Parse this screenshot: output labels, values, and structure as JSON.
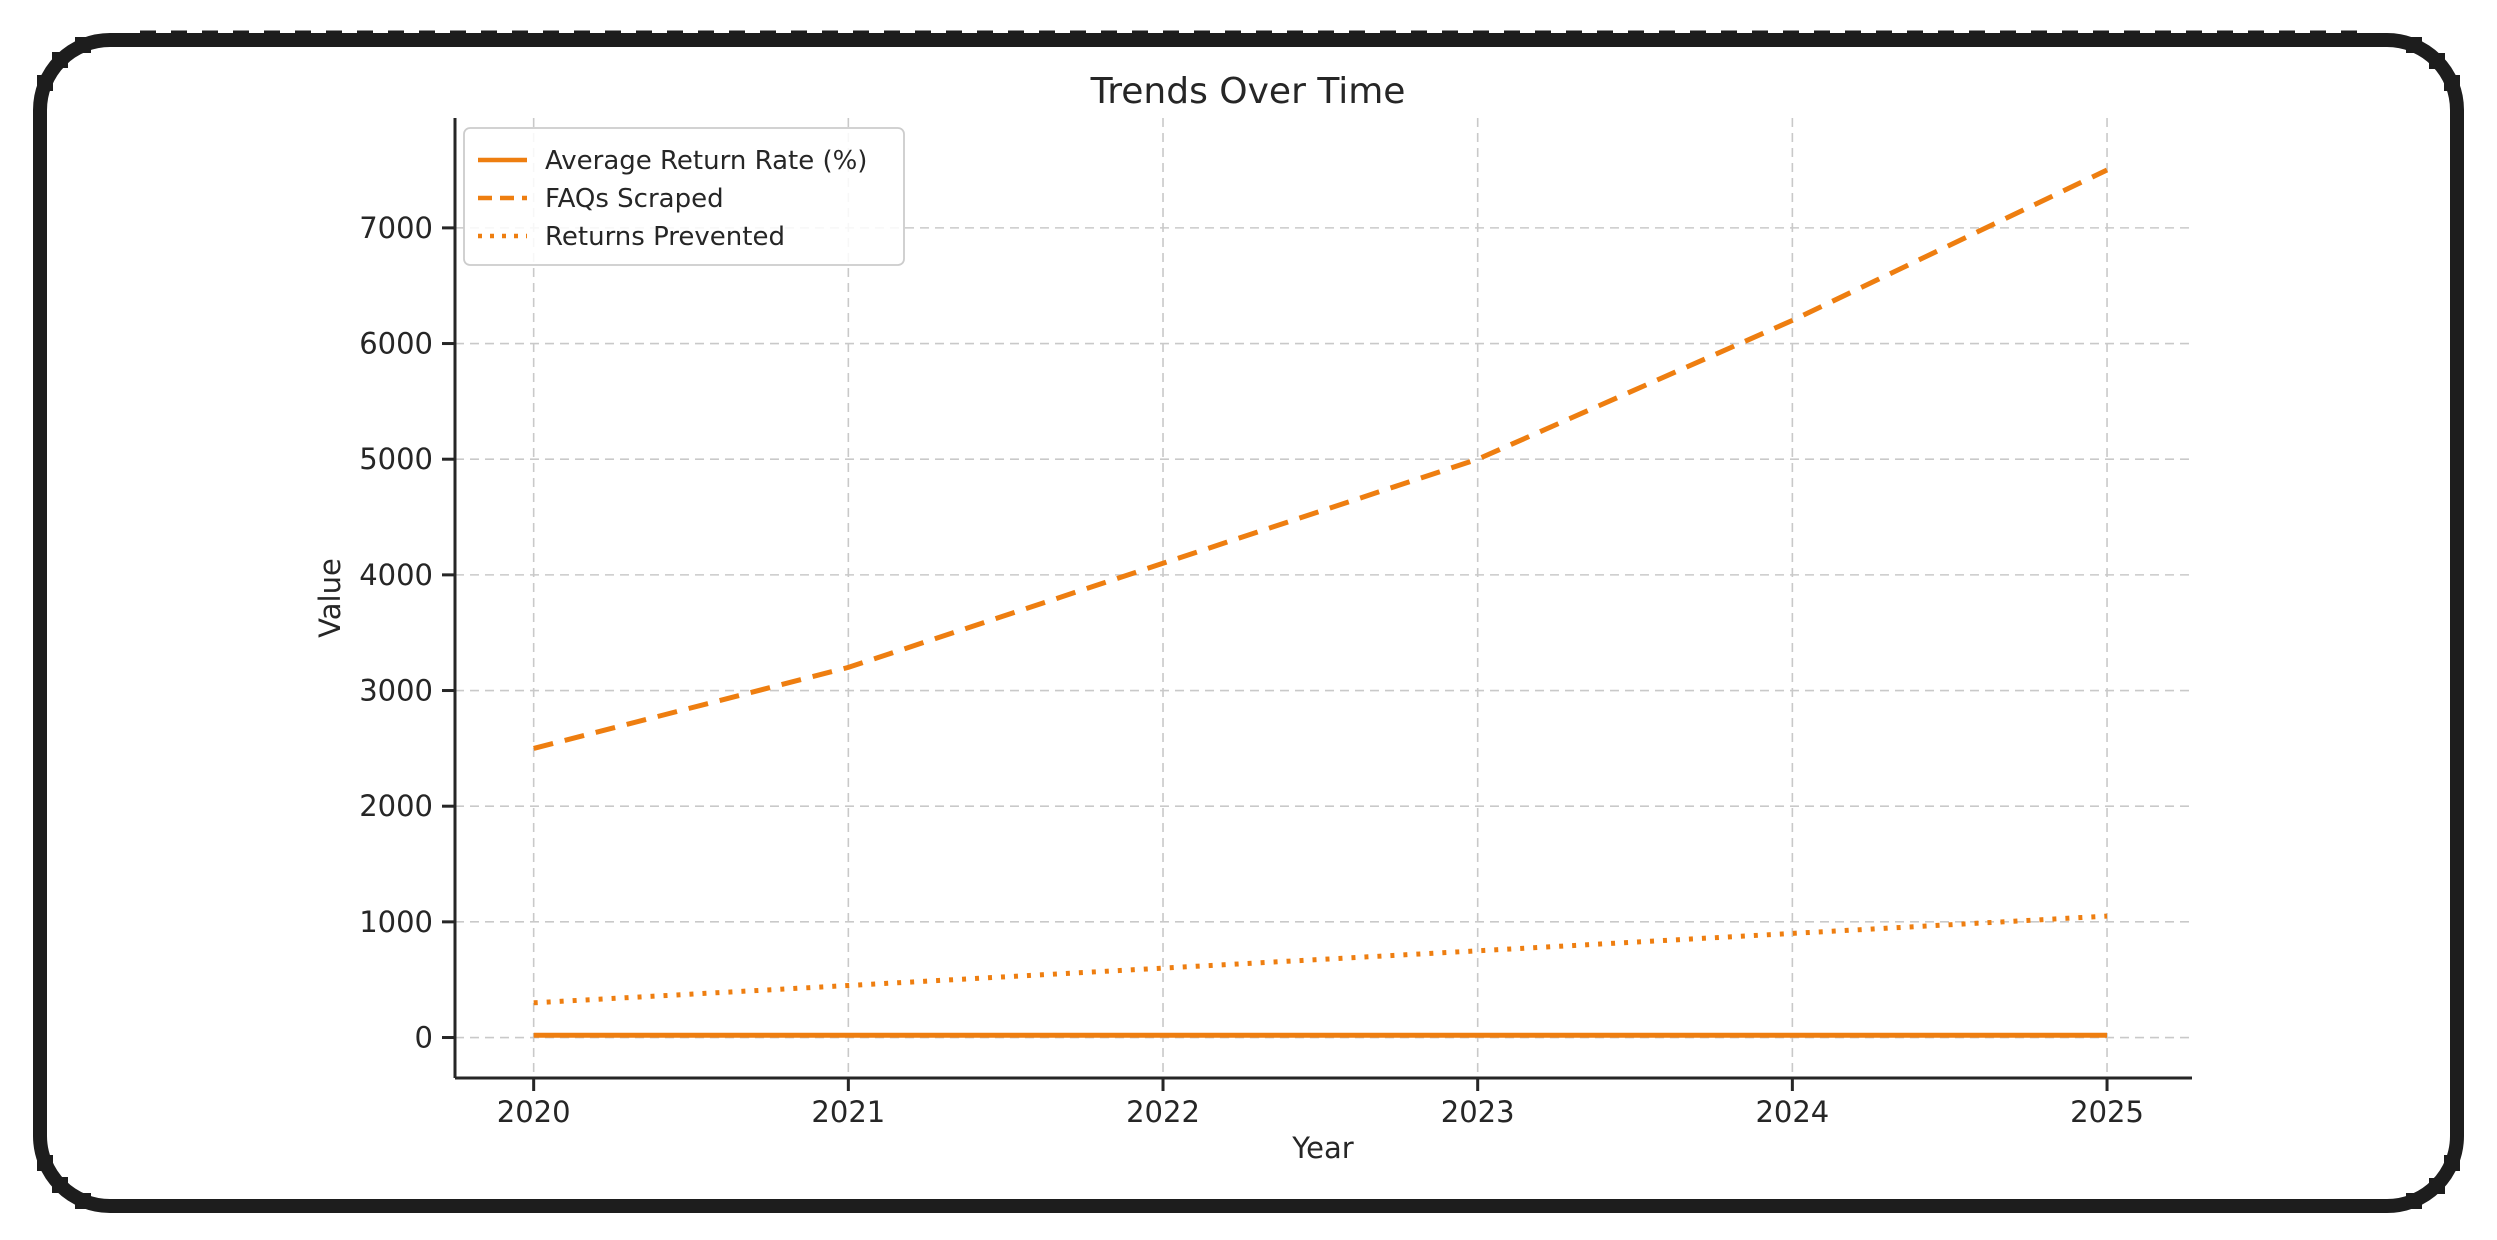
{
  "palette": {
    "background": "#ffffff",
    "frame": "#1d1d1d",
    "accent_orange": "#ee7e10",
    "grid": "#c9c9c9",
    "axis": "#262626",
    "text": "#262626",
    "legend_border": "#cccccc",
    "legend_background": "rgba(255,255,255,0.85)"
  },
  "chart_data": {
    "type": "line",
    "title": "Trends Over Time",
    "xlabel": "Year",
    "ylabel": "Value",
    "categories": [
      2020,
      2021,
      2022,
      2023,
      2024,
      2025
    ],
    "y_ticks": [
      0,
      1000,
      2000,
      3000,
      4000,
      5000,
      6000,
      7000
    ],
    "xlim": [
      2019.75,
      2025.27
    ],
    "ylim": [
      -350,
      7950
    ],
    "grid": true,
    "grid_style": "dashed",
    "legend_position": "upper left",
    "series": [
      {
        "name": "Average Return Rate (%)",
        "style": "solid",
        "color": "#ee7e10",
        "values": [
          20,
          20,
          20,
          20,
          20,
          20
        ]
      },
      {
        "name": "FAQs Scraped",
        "style": "dashed",
        "color": "#ee7e10",
        "values": [
          2500,
          3200,
          4100,
          5000,
          6200,
          7500
        ]
      },
      {
        "name": "Returns Prevented",
        "style": "dotted",
        "color": "#ee7e10",
        "values": [
          300,
          450,
          600,
          750,
          900,
          1050
        ]
      }
    ]
  }
}
